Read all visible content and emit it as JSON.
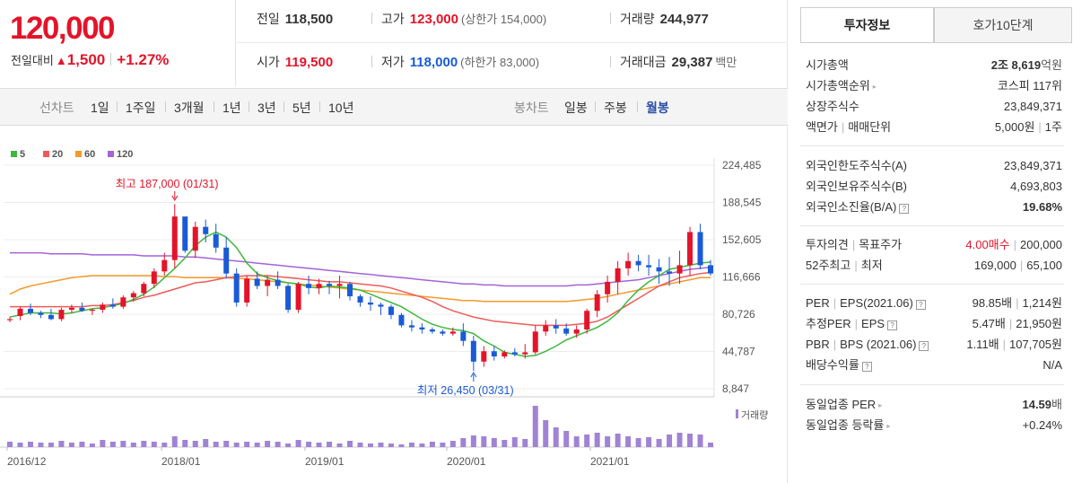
{
  "price": {
    "current": "120,000",
    "change_label": "전일대비",
    "change_arrow": "▲",
    "change_value": "1,500",
    "change_pct": "+1.27%"
  },
  "stats": {
    "prev_label": "전일",
    "prev_value": "118,500",
    "high_label": "고가",
    "high_value": "123,000",
    "upper_limit": "(상한가 154,000)",
    "volume_label": "거래량",
    "volume_value": "244,977",
    "open_label": "시가",
    "open_value": "119,500",
    "low_label": "저가",
    "low_value": "118,000",
    "lower_limit": "(하한가 83,000)",
    "amount_label": "거래대금",
    "amount_value": "29,387",
    "amount_unit": "백만"
  },
  "tabs": {
    "line_chart": "선차트",
    "periods": [
      "1일",
      "1주일",
      "3개월",
      "1년",
      "3년",
      "5년",
      "10년"
    ],
    "candle_chart": "봉차트",
    "candle_periods": [
      "일봉",
      "주봉",
      "월봉"
    ]
  },
  "chart_data": {
    "type": "candlestick",
    "legend": [
      {
        "label": "5",
        "color": "#3db83d"
      },
      {
        "label": "20",
        "color": "#ef5b5b"
      },
      {
        "label": "60",
        "color": "#f39a2c"
      },
      {
        "label": "120",
        "color": "#a463d8"
      }
    ],
    "y_ticks": [
      "224,485",
      "188,545",
      "152,605",
      "116,666",
      "80,726",
      "44,787",
      "8,847"
    ],
    "ylim": [
      8847,
      224485
    ],
    "x_labels": [
      "2016/12",
      "2018/01",
      "2019/01",
      "2020/01",
      "2021/01"
    ],
    "volume_label": "거래량",
    "annotations": {
      "high": "최고 187,000 (01/31)",
      "low": "최저 26,450 (03/31)"
    },
    "candles": [
      [
        75,
        78,
        73,
        76
      ],
      [
        79,
        88,
        75,
        86
      ],
      [
        86,
        91,
        80,
        82
      ],
      [
        82,
        84,
        77,
        80
      ],
      [
        80,
        86,
        75,
        76
      ],
      [
        76,
        87,
        74,
        85
      ],
      [
        85,
        90,
        82,
        87
      ],
      [
        87,
        92,
        83,
        84
      ],
      [
        84,
        86,
        80,
        85
      ],
      [
        85,
        92,
        82,
        90
      ],
      [
        90,
        96,
        86,
        88
      ],
      [
        88,
        99,
        86,
        97
      ],
      [
        97,
        103,
        93,
        101
      ],
      [
        101,
        112,
        98,
        110
      ],
      [
        110,
        125,
        106,
        122
      ],
      [
        122,
        140,
        118,
        133
      ],
      [
        133,
        187,
        125,
        175
      ],
      [
        175,
        172,
        140,
        142
      ],
      [
        142,
        170,
        135,
        165
      ],
      [
        165,
        172,
        150,
        158
      ],
      [
        158,
        168,
        140,
        145
      ],
      [
        145,
        155,
        115,
        120
      ],
      [
        120,
        125,
        88,
        92
      ],
      [
        92,
        118,
        88,
        115
      ],
      [
        115,
        122,
        105,
        108
      ],
      [
        108,
        118,
        98,
        114
      ],
      [
        114,
        122,
        105,
        108
      ],
      [
        108,
        110,
        82,
        85
      ],
      [
        85,
        112,
        82,
        110
      ],
      [
        110,
        118,
        100,
        106
      ],
      [
        106,
        115,
        100,
        110
      ],
      [
        110,
        113,
        100,
        108
      ],
      [
        108,
        118,
        96,
        110
      ],
      [
        110,
        112,
        94,
        98
      ],
      [
        98,
        100,
        88,
        92
      ],
      [
        92,
        98,
        84,
        90
      ],
      [
        90,
        92,
        80,
        88
      ],
      [
        88,
        90,
        76,
        80
      ],
      [
        80,
        82,
        68,
        70
      ],
      [
        70,
        75,
        64,
        68
      ],
      [
        68,
        72,
        62,
        66
      ],
      [
        66,
        68,
        62,
        64
      ],
      [
        64,
        66,
        60,
        62
      ],
      [
        62,
        68,
        60,
        64
      ],
      [
        64,
        72,
        50,
        55
      ],
      [
        55,
        60,
        26,
        35
      ],
      [
        35,
        50,
        30,
        45
      ],
      [
        45,
        50,
        36,
        40
      ],
      [
        40,
        46,
        38,
        44
      ],
      [
        44,
        48,
        40,
        42
      ],
      [
        42,
        52,
        38,
        44
      ],
      [
        44,
        70,
        42,
        64
      ],
      [
        64,
        75,
        60,
        70
      ],
      [
        70,
        76,
        62,
        67
      ],
      [
        67,
        72,
        60,
        62
      ],
      [
        62,
        70,
        58,
        66
      ],
      [
        66,
        86,
        62,
        84
      ],
      [
        84,
        104,
        78,
        100
      ],
      [
        100,
        118,
        92,
        112
      ],
      [
        112,
        132,
        100,
        125
      ],
      [
        125,
        140,
        118,
        132
      ],
      [
        132,
        138,
        122,
        128
      ],
      [
        128,
        138,
        118,
        126
      ],
      [
        126,
        134,
        110,
        122
      ],
      [
        122,
        136,
        108,
        120
      ],
      [
        120,
        142,
        110,
        128
      ],
      [
        128,
        165,
        118,
        160
      ],
      [
        160,
        168,
        124,
        128
      ],
      [
        128,
        133,
        118,
        120
      ]
    ],
    "volume": [
      6,
      5,
      6,
      5,
      5,
      7,
      5,
      6,
      4,
      8,
      6,
      7,
      5,
      7,
      6,
      5,
      12,
      8,
      7,
      9,
      6,
      7,
      5,
      6,
      5,
      7,
      6,
      4,
      8,
      6,
      5,
      6,
      4,
      7,
      5,
      4,
      5,
      4,
      3,
      5,
      4,
      6,
      5,
      7,
      10,
      13,
      12,
      10,
      8,
      11,
      9,
      46,
      30,
      22,
      18,
      12,
      14,
      16,
      12,
      15,
      12,
      10,
      11,
      9,
      14,
      16,
      15,
      14,
      5
    ],
    "ma5": [
      78,
      80,
      82,
      82,
      82,
      81,
      82,
      84,
      86,
      87,
      89,
      91,
      95,
      100,
      107,
      116,
      125,
      135,
      147,
      155,
      160,
      155,
      145,
      130,
      120,
      116,
      113,
      111,
      110,
      107,
      106,
      108,
      107,
      106,
      104,
      100,
      96,
      92,
      88,
      82,
      76,
      71,
      68,
      66,
      65,
      62,
      55,
      50,
      44,
      42,
      40,
      41,
      45,
      50,
      56,
      60,
      64,
      68,
      74,
      82,
      94,
      104,
      112,
      118,
      124,
      126,
      128,
      130,
      131
    ],
    "ma20": [
      88,
      88,
      88,
      88,
      88,
      88,
      88,
      88,
      89,
      89,
      90,
      92,
      94,
      97,
      99,
      102,
      105,
      108,
      111,
      112,
      114,
      116,
      117,
      118,
      118,
      118,
      117,
      116,
      115,
      114,
      113,
      112,
      112,
      111,
      110,
      109,
      108,
      106,
      103,
      100,
      97,
      93,
      88,
      84,
      81,
      78,
      76,
      74,
      73,
      72,
      71,
      70,
      70,
      70,
      70,
      71,
      72,
      74,
      78,
      84,
      90,
      96,
      102,
      108,
      112,
      116,
      118,
      120,
      121
    ],
    "ma60": [
      100,
      105,
      108,
      110,
      112,
      114,
      116,
      117,
      118,
      118,
      118,
      118,
      118,
      118,
      118,
      117,
      117,
      116,
      116,
      116,
      116,
      116,
      115,
      115,
      114,
      113,
      112,
      111,
      110,
      109,
      108,
      107,
      106,
      105,
      104,
      103,
      102,
      101,
      100,
      99,
      98,
      97,
      96,
      95,
      94,
      94,
      93,
      93,
      93,
      93,
      93,
      93,
      93,
      93,
      93,
      94,
      95,
      96,
      98,
      100,
      102,
      104,
      106,
      108,
      110,
      112,
      114,
      116,
      116
    ],
    "ma120": [
      140,
      140,
      140,
      140,
      139,
      139,
      139,
      139,
      138,
      138,
      138,
      138,
      138,
      137,
      137,
      137,
      137,
      136,
      136,
      135,
      134,
      133,
      132,
      131,
      130,
      129,
      128,
      127,
      126,
      125,
      124,
      123,
      122,
      121,
      120,
      119,
      118,
      117,
      116,
      115,
      114,
      113,
      112,
      111,
      110,
      110,
      109,
      109,
      108,
      108,
      108,
      108,
      108,
      108,
      108,
      109,
      109,
      110,
      111,
      112,
      113,
      114,
      116,
      118,
      120,
      122,
      124,
      125,
      126
    ]
  },
  "info": {
    "tab_active": "투자정보",
    "tab_other": "호가10단계",
    "g1": [
      {
        "k": "시가총액",
        "v1": "2조 8,619",
        "v2": "억원"
      },
      {
        "k": "시가총액순위",
        "v1": "코스피 117위",
        "v2": ""
      },
      {
        "k": "상장주식수",
        "v1": "23,849,371",
        "v2": ""
      },
      {
        "k1": "액면가",
        "k2": "매매단위",
        "v1": "5,000원",
        "v2": "1주"
      }
    ],
    "g2": [
      {
        "k": "외국인한도주식수(A)",
        "v": "23,849,371"
      },
      {
        "k": "외국인보유주식수(B)",
        "v": "4,693,803"
      },
      {
        "k": "외국인소진율(B/A)",
        "v": "19.68%"
      }
    ],
    "g3": {
      "opinion_k1": "투자의견",
      "opinion_k2": "목표주가",
      "opinion_v1": "4.00매수",
      "opinion_v2": "200,000",
      "w52_k1": "52주최고",
      "w52_k2": "최저",
      "w52_v1": "169,000",
      "w52_v2": "65,100"
    },
    "g4": {
      "per_k1": "PER",
      "per_k2": "EPS(2021.06)",
      "per_v1": "98.85배",
      "per_v2": "1,214원",
      "eper_k1": "추정PER",
      "eper_k2": "EPS",
      "eper_v1": "5.47배",
      "eper_v2": "21,950원",
      "pbr_k1": "PBR",
      "pbr_k2": "BPS (2021.06)",
      "pbr_v1": "1.11배",
      "pbr_v2": "107,705원",
      "div_k": "배당수익률",
      "div_v": "N/A"
    },
    "g5": {
      "sper_k": "동일업종 PER",
      "sper_v": "14.59",
      "sper_unit": "배",
      "srate_k": "동일업종 등락률",
      "srate_v": "+0.24%"
    }
  }
}
